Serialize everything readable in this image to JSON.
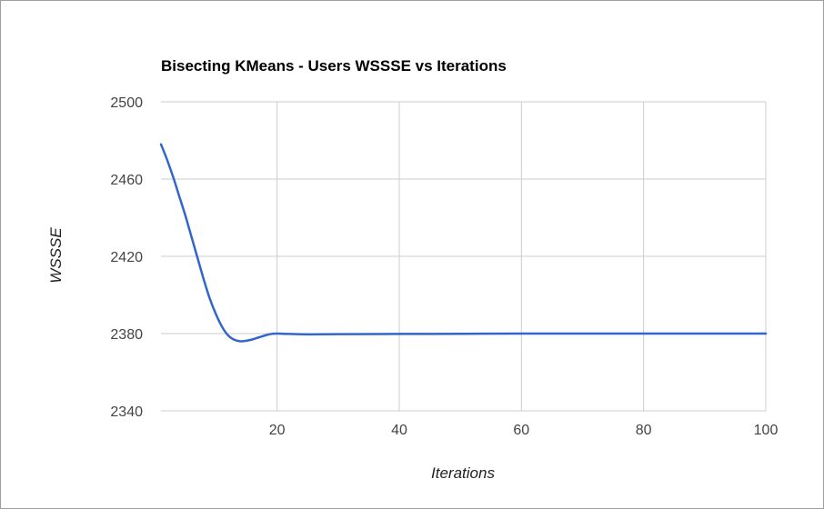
{
  "chart_data": {
    "type": "line",
    "title": "Bisecting KMeans - Users WSSSE vs Iterations",
    "xlabel": "Iterations",
    "ylabel": "WSSSE",
    "xlim": [
      1,
      100
    ],
    "ylim": [
      2340,
      2500
    ],
    "xticks": [
      20,
      40,
      60,
      80,
      100
    ],
    "yticks": [
      2340,
      2380,
      2420,
      2460,
      2500
    ],
    "grid": true,
    "series": [
      {
        "color": "#3366cc",
        "x": [
          1,
          2,
          3,
          4,
          5,
          6,
          7,
          8,
          9,
          10,
          11,
          12,
          13,
          14,
          15,
          16,
          17,
          18,
          19,
          20,
          22,
          25,
          30,
          40,
          50,
          60,
          70,
          80,
          90,
          100
        ],
        "y": [
          2478,
          2470,
          2461,
          2451,
          2441,
          2430,
          2419,
          2408,
          2398,
          2390,
          2383.5,
          2379,
          2376.8,
          2376,
          2376.3,
          2377,
          2378,
          2379,
          2379.8,
          2380,
          2379.8,
          2379.6,
          2379.7,
          2379.8,
          2379.9,
          2380,
          2380,
          2380,
          2380,
          2380
        ]
      }
    ]
  }
}
